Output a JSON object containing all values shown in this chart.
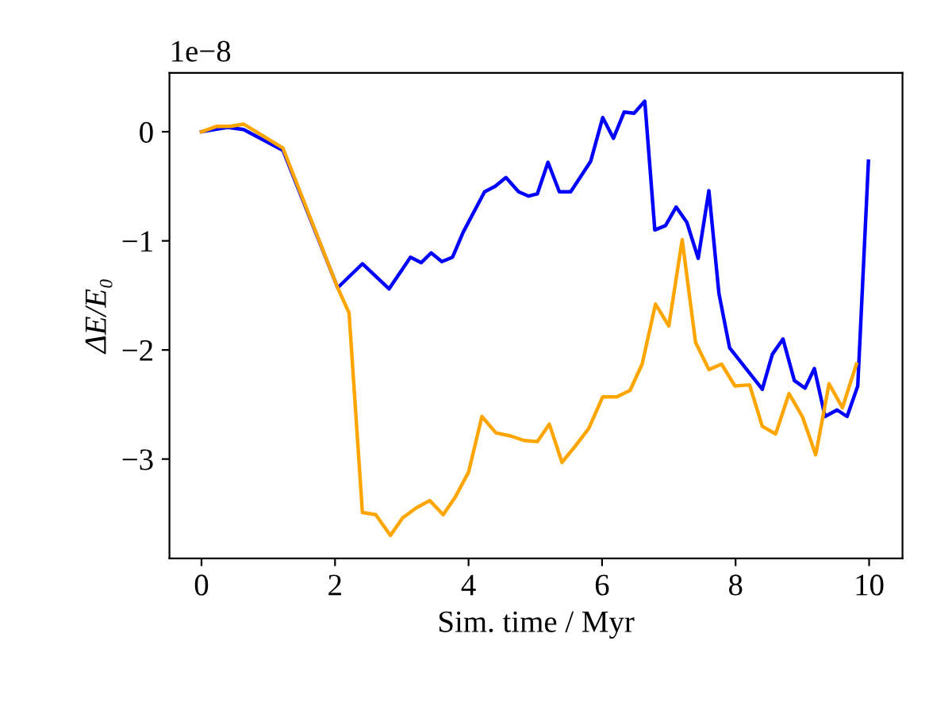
{
  "chart_data": {
    "type": "line",
    "xlabel": "Sim. time / Myr",
    "ylabel": "ΔE/E₀",
    "annotations": [
      "1e−8"
    ],
    "xlim": [
      -0.48,
      10.5
    ],
    "ylim": [
      -3.91,
      0.54
    ],
    "xticks": [
      0,
      2,
      4,
      6,
      8,
      10
    ],
    "yticks": [
      {
        "value": -3,
        "label": "−3"
      },
      {
        "value": -2,
        "label": "−2"
      },
      {
        "value": -1,
        "label": "−1"
      },
      0
    ],
    "marker": "none",
    "line_style": "solid",
    "series": [
      {
        "color": "#0000ff",
        "x": [
          0,
          0.39,
          0.63,
          1.22,
          2.04,
          2.41,
          2.81,
          3.13,
          3.29,
          3.44,
          3.6,
          3.76,
          3.92,
          4.24,
          4.4,
          4.56,
          4.75,
          4.9,
          5.03,
          5.19,
          5.36,
          5.53,
          5.83,
          6.01,
          6.17,
          6.33,
          6.48,
          6.64,
          6.79,
          6.95,
          7.11,
          7.27,
          7.44,
          7.6,
          7.75,
          7.91,
          8.4,
          8.55,
          8.71,
          8.88,
          9.04,
          9.18,
          9.34,
          9.52,
          9.67,
          9.83,
          9.99
        ],
        "values": [
          0,
          0.04,
          0.02,
          -0.17,
          -1.43,
          -1.21,
          -1.44,
          -1.15,
          -1.2,
          -1.11,
          -1.19,
          -1.15,
          -0.92,
          -0.55,
          -0.5,
          -0.42,
          -0.55,
          -0.59,
          -0.57,
          -0.28,
          -0.55,
          -0.55,
          -0.27,
          0.13,
          -0.06,
          0.18,
          0.17,
          0.28,
          -0.9,
          -0.86,
          -0.69,
          -0.83,
          -1.16,
          -0.54,
          -1.48,
          -1.98,
          -2.36,
          -2.04,
          -1.9,
          -2.28,
          -2.35,
          -2.17,
          -2.61,
          -2.55,
          -2.61,
          -2.33,
          -0.27
        ]
      },
      {
        "color": "#ffa500",
        "x": [
          0,
          0.23,
          0.43,
          0.63,
          1.22,
          2.04,
          2.21,
          2.41,
          2.61,
          2.83,
          3.01,
          3.21,
          3.42,
          3.62,
          3.8,
          4.0,
          4.2,
          4.41,
          4.64,
          4.83,
          5.03,
          5.21,
          5.4,
          5.6,
          5.8,
          6.01,
          6.22,
          6.42,
          6.6,
          6.8,
          7.0,
          7.2,
          7.4,
          7.6,
          7.79,
          7.99,
          8.21,
          8.4,
          8.6,
          8.8,
          9.0,
          9.2,
          9.4,
          9.6,
          9.81
        ],
        "values": [
          0,
          0.05,
          0.05,
          0.07,
          -0.15,
          -1.43,
          -1.66,
          -3.49,
          -3.51,
          -3.7,
          -3.54,
          -3.45,
          -3.38,
          -3.51,
          -3.35,
          -3.12,
          -2.61,
          -2.76,
          -2.79,
          -2.83,
          -2.84,
          -2.68,
          -3.03,
          -2.88,
          -2.72,
          -2.43,
          -2.43,
          -2.37,
          -2.13,
          -1.58,
          -1.78,
          -0.99,
          -1.93,
          -2.18,
          -2.13,
          -2.33,
          -2.32,
          -2.7,
          -2.77,
          -2.4,
          -2.61,
          -2.96,
          -2.31,
          -2.53,
          -2.13
        ]
      }
    ]
  }
}
